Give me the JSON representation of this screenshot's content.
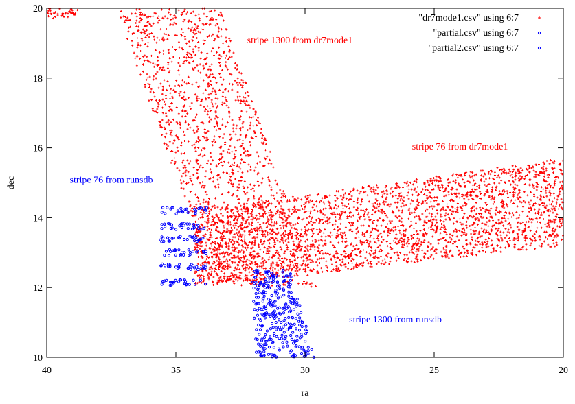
{
  "chart_data": {
    "type": "scatter",
    "title": "",
    "xlabel": "ra",
    "ylabel": "dec",
    "xlim": [
      40,
      20
    ],
    "ylim": [
      10,
      20
    ],
    "x_reversed": true,
    "grid": false,
    "legend_position": "top-right",
    "xticks": [
      40,
      35,
      30,
      25,
      20
    ],
    "yticks": [
      10,
      12,
      14,
      16,
      18,
      20
    ],
    "series": [
      {
        "name": "\"dr7mode1.csv\" using 6:7",
        "color": "#ff0000",
        "marker": "plus",
        "regions": [
          {
            "description": "stripe 1300 band",
            "ra_range_at_dec20": [
              37.3,
              33.3
            ],
            "ra_range_at_dec12": [
              33.5,
              29.5
            ],
            "dec_range": [
              12.0,
              20.0
            ]
          },
          {
            "description": "stripe 76 band",
            "ra_range": [
              34.3,
              20.0
            ],
            "dec_low_at_ra34": 12.0,
            "dec_high_at_ra34": 14.2,
            "dec_low_at_ra20": 13.2,
            "dec_high_at_ra20": 15.7
          },
          {
            "description": "corner fragment",
            "ra_range": [
              40.0,
              38.8
            ],
            "dec_range": [
              19.7,
              20.0
            ]
          }
        ]
      },
      {
        "name": "\"partial.csv\" using 6:7",
        "color": "#0000ff",
        "marker": "open-circle",
        "regions": [
          {
            "description": "stripe 76 partial block",
            "ra_range": [
              35.6,
              33.8
            ],
            "dec_rows": [
              14.2,
              13.75,
              13.4,
              13.0,
              12.6,
              12.15
            ]
          }
        ]
      },
      {
        "name": "\"partial2.csv\" using 6:7",
        "color": "#0000ff",
        "marker": "open-circle",
        "regions": [
          {
            "description": "stripe 1300 partial block",
            "dec_range": [
              10.0,
              12.5
            ],
            "ra_left_at_dec12_5": 32.1,
            "ra_right_at_dec12_5": 30.6,
            "ra_left_at_dec10": 31.9,
            "ra_right_at_dec10": 29.6
          }
        ]
      }
    ],
    "annotations": [
      {
        "text": "stripe 1300 from dr7mode1",
        "x": 30.2,
        "y": 19.0,
        "color": "#ff0000"
      },
      {
        "text": "stripe 76 from dr7mode1",
        "x": 24.0,
        "y": 15.95,
        "color": "#ff0000"
      },
      {
        "text": "stripe 76 from runsdb",
        "x": 37.5,
        "y": 15.0,
        "color": "#0000ff"
      },
      {
        "text": "stripe 1300 from runsdb",
        "x": 26.5,
        "y": 11.0,
        "color": "#0000ff"
      }
    ]
  }
}
